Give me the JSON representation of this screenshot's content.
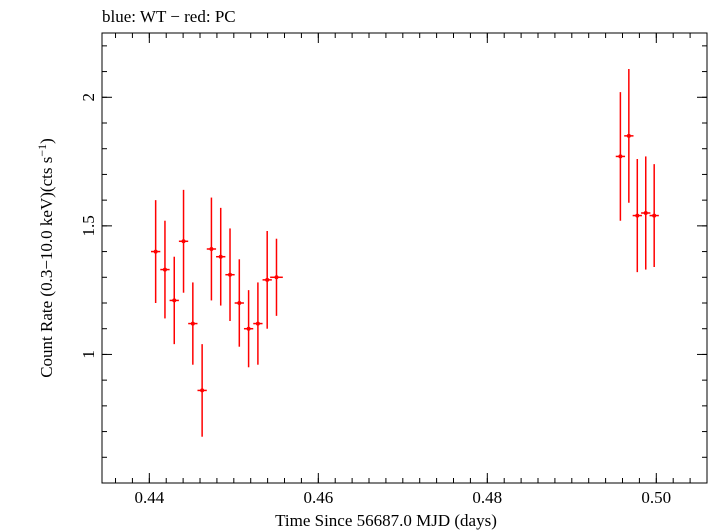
{
  "chart_data": {
    "type": "scatter",
    "title": "blue: WT − red: PC",
    "xlabel": "Time Since 56687.0 MJD (days)",
    "ylabel": {
      "prefix": "Count Rate (0.3−10.0 keV)(cts s",
      "sup": "−1",
      "suffix": ")"
    },
    "xlim": [
      0.4344,
      0.506
    ],
    "ylim": [
      0.5,
      2.25
    ],
    "x_ticks": [
      {
        "value": 0.44,
        "label": "0.44"
      },
      {
        "value": 0.46,
        "label": "0.46"
      },
      {
        "value": 0.48,
        "label": "0.48"
      },
      {
        "value": 0.5,
        "label": "0.50"
      }
    ],
    "x_minor_step": 0.002,
    "y_ticks": [
      {
        "value": 1.0,
        "label": "1"
      },
      {
        "value": 1.5,
        "label": "1.5"
      },
      {
        "value": 2.0,
        "label": "2"
      }
    ],
    "y_minor_step": 0.1,
    "series": [
      {
        "color": "#ff0000",
        "points": [
          {
            "x": 0.44075,
            "xerr": 0.00055,
            "y": 1.4,
            "yerr": 0.2
          },
          {
            "x": 0.44185,
            "xerr": 0.00055,
            "y": 1.33,
            "yerr": 0.19
          },
          {
            "x": 0.44295,
            "xerr": 0.00055,
            "y": 1.21,
            "yerr": 0.17
          },
          {
            "x": 0.44405,
            "xerr": 0.00055,
            "y": 1.44,
            "yerr": 0.2
          },
          {
            "x": 0.44515,
            "xerr": 0.00055,
            "y": 1.12,
            "yerr": 0.16
          },
          {
            "x": 0.44625,
            "xerr": 0.00055,
            "y": 0.86,
            "yerr": 0.18
          },
          {
            "x": 0.44735,
            "xerr": 0.00055,
            "y": 1.41,
            "yerr": 0.2
          },
          {
            "x": 0.44845,
            "xerr": 0.00055,
            "y": 1.38,
            "yerr": 0.19
          },
          {
            "x": 0.44955,
            "xerr": 0.00055,
            "y": 1.31,
            "yerr": 0.18
          },
          {
            "x": 0.45065,
            "xerr": 0.00055,
            "y": 1.2,
            "yerr": 0.17
          },
          {
            "x": 0.45175,
            "xerr": 0.00055,
            "y": 1.1,
            "yerr": 0.15
          },
          {
            "x": 0.45285,
            "xerr": 0.00055,
            "y": 1.12,
            "yerr": 0.16
          },
          {
            "x": 0.45395,
            "xerr": 0.00055,
            "y": 1.29,
            "yerr": 0.19
          },
          {
            "x": 0.45505,
            "xerr": 0.00075,
            "y": 1.3,
            "yerr": 0.15
          },
          {
            "x": 0.49575,
            "xerr": 0.00055,
            "y": 1.77,
            "yerr": 0.25
          },
          {
            "x": 0.49675,
            "xerr": 0.00055,
            "y": 1.85,
            "yerr": 0.26
          },
          {
            "x": 0.49775,
            "xerr": 0.00055,
            "y": 1.54,
            "yerr": 0.22
          },
          {
            "x": 0.49875,
            "xerr": 0.00055,
            "y": 1.55,
            "yerr": 0.22
          },
          {
            "x": 0.49975,
            "xerr": 0.00055,
            "y": 1.54,
            "yerr": 0.2
          }
        ]
      }
    ],
    "grid": false,
    "colors": {
      "frame": "#000000",
      "data": "#ff0000"
    }
  }
}
